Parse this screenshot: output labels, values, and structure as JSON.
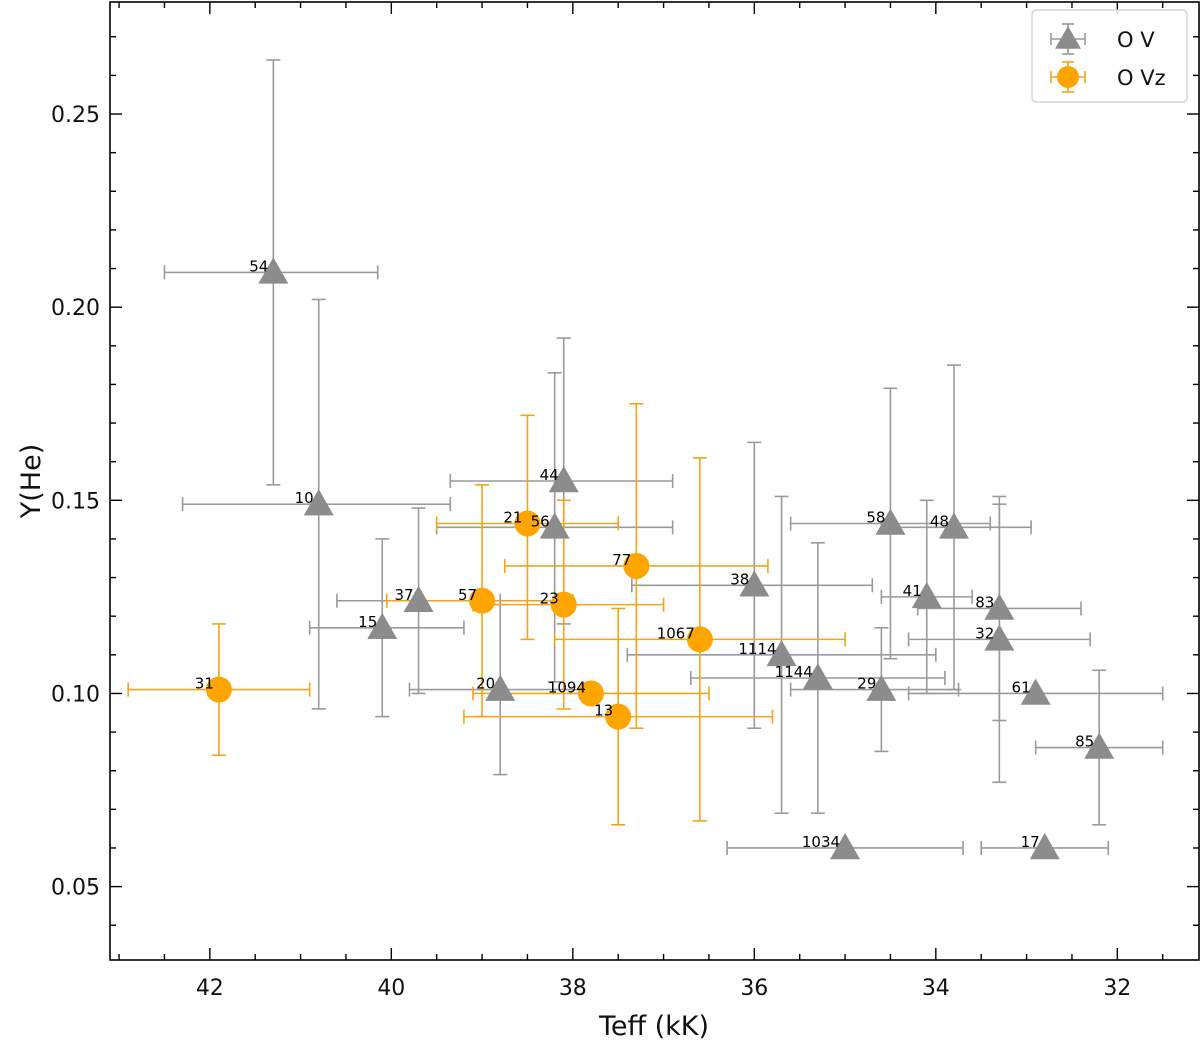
{
  "chart_data": {
    "type": "scatter",
    "xlabel": "Teff (kK)",
    "ylabel": "Y(He)",
    "xlim": [
      43.1,
      31.1
    ],
    "ylim": [
      0.031,
      0.279
    ],
    "x_inverted": true,
    "xticks_major": [
      42,
      40,
      38,
      36,
      34,
      32
    ],
    "yticks_major": [
      0.05,
      0.1,
      0.15,
      0.2,
      0.25
    ],
    "xtick_labels": [
      "42",
      "40",
      "38",
      "36",
      "34",
      "32"
    ],
    "ytick_labels": [
      "0.05",
      "0.10",
      "0.15",
      "0.20",
      "0.25"
    ],
    "legend": {
      "position": "upper right",
      "entries": [
        "O V",
        "O Vz"
      ]
    },
    "series": [
      {
        "name": "O V",
        "marker": "triangle",
        "color": "#8c8c8c",
        "errcolor": "#9a9a9a",
        "points": [
          {
            "label": "54",
            "x": 41.3,
            "y": 0.209,
            "xerr": [
              40.15,
              42.5
            ],
            "yerr": [
              0.154,
              0.264
            ]
          },
          {
            "label": "10",
            "x": 40.8,
            "y": 0.149,
            "xerr": [
              39.35,
              42.3
            ],
            "yerr": [
              0.096,
              0.202
            ]
          },
          {
            "label": "37",
            "x": 39.7,
            "y": 0.124,
            "xerr": [
              38.8,
              40.6
            ],
            "yerr": [
              0.1,
              0.148
            ]
          },
          {
            "label": "15",
            "x": 40.1,
            "y": 0.117,
            "xerr": [
              39.2,
              40.9
            ],
            "yerr": [
              0.094,
              0.14
            ]
          },
          {
            "label": "44",
            "x": 38.1,
            "y": 0.155,
            "xerr": [
              36.9,
              39.35
            ],
            "yerr": [
              0.118,
              0.192
            ]
          },
          {
            "label": "56",
            "x": 38.2,
            "y": 0.143,
            "xerr": [
              36.9,
              39.5
            ],
            "yerr": [
              0.103,
              0.183
            ]
          },
          {
            "label": "20",
            "x": 38.8,
            "y": 0.101,
            "xerr": [
              37.9,
              39.8
            ],
            "yerr": [
              0.079,
              0.123
            ]
          },
          {
            "label": "38",
            "x": 36.0,
            "y": 0.128,
            "xerr": [
              34.7,
              37.35
            ],
            "yerr": [
              0.091,
              0.165
            ]
          },
          {
            "label": "1114",
            "x": 35.7,
            "y": 0.11,
            "xerr": [
              34.0,
              37.4
            ],
            "yerr": [
              0.069,
              0.151
            ]
          },
          {
            "label": "1144",
            "x": 35.3,
            "y": 0.104,
            "xerr": [
              33.9,
              36.7
            ],
            "yerr": [
              0.069,
              0.139
            ]
          },
          {
            "label": "58",
            "x": 34.5,
            "y": 0.144,
            "xerr": [
              33.4,
              35.6
            ],
            "yerr": [
              0.109,
              0.179
            ]
          },
          {
            "label": "48",
            "x": 33.8,
            "y": 0.143,
            "xerr": [
              32.95,
              34.6
            ],
            "yerr": [
              0.101,
              0.185
            ]
          },
          {
            "label": "41",
            "x": 34.1,
            "y": 0.125,
            "xerr": [
              33.6,
              34.6
            ],
            "yerr": [
              0.1,
              0.15
            ]
          },
          {
            "label": "29",
            "x": 34.6,
            "y": 0.101,
            "xerr": [
              33.75,
              35.6
            ],
            "yerr": [
              0.085,
              0.117
            ]
          },
          {
            "label": "83",
            "x": 33.3,
            "y": 0.122,
            "xerr": [
              32.4,
              34.2
            ],
            "yerr": [
              0.093,
              0.151
            ]
          },
          {
            "label": "32",
            "x": 33.3,
            "y": 0.114,
            "xerr": [
              32.3,
              34.3
            ],
            "yerr": [
              0.077,
              0.149
            ]
          },
          {
            "label": "61",
            "x": 32.9,
            "y": 0.1,
            "xerr": [
              31.5,
              34.3
            ],
            "yerr": [
              0.1,
              0.1
            ]
          },
          {
            "label": "85",
            "x": 32.2,
            "y": 0.086,
            "xerr": [
              31.5,
              32.9
            ],
            "yerr": [
              0.066,
              0.106
            ]
          },
          {
            "label": "1034",
            "x": 35.0,
            "y": 0.06,
            "xerr": [
              33.7,
              36.3
            ],
            "yerr": [
              0.06,
              0.06
            ]
          },
          {
            "label": "17",
            "x": 32.8,
            "y": 0.06,
            "xerr": [
              32.1,
              33.5
            ],
            "yerr": [
              0.06,
              0.06
            ]
          }
        ]
      },
      {
        "name": "O Vz",
        "marker": "circle",
        "color": "#ffa500",
        "errcolor": "#f2a41a",
        "points": [
          {
            "label": "31",
            "x": 41.9,
            "y": 0.101,
            "xerr": [
              40.9,
              42.9
            ],
            "yerr": [
              0.084,
              0.118
            ]
          },
          {
            "label": "57",
            "x": 39.0,
            "y": 0.124,
            "xerr": [
              38.0,
              40.05
            ],
            "yerr": [
              0.094,
              0.154
            ]
          },
          {
            "label": "21",
            "x": 38.5,
            "y": 0.144,
            "xerr": [
              37.5,
              39.5
            ],
            "yerr": [
              0.114,
              0.172
            ]
          },
          {
            "label": "23",
            "x": 38.1,
            "y": 0.123,
            "xerr": [
              37.0,
              39.1
            ],
            "yerr": [
              0.096,
              0.15
            ]
          },
          {
            "label": "77",
            "x": 37.3,
            "y": 0.133,
            "xerr": [
              35.85,
              38.75
            ],
            "yerr": [
              0.091,
              0.175
            ]
          },
          {
            "label": "1067",
            "x": 36.6,
            "y": 0.114,
            "xerr": [
              35.0,
              38.2
            ],
            "yerr": [
              0.067,
              0.161
            ]
          },
          {
            "label": "1094",
            "x": 37.8,
            "y": 0.1,
            "xerr": [
              36.5,
              39.1
            ],
            "yerr": [
              0.1,
              0.1
            ]
          },
          {
            "label": "13",
            "x": 37.5,
            "y": 0.094,
            "xerr": [
              35.8,
              39.2
            ],
            "yerr": [
              0.066,
              0.122
            ]
          }
        ]
      }
    ]
  }
}
